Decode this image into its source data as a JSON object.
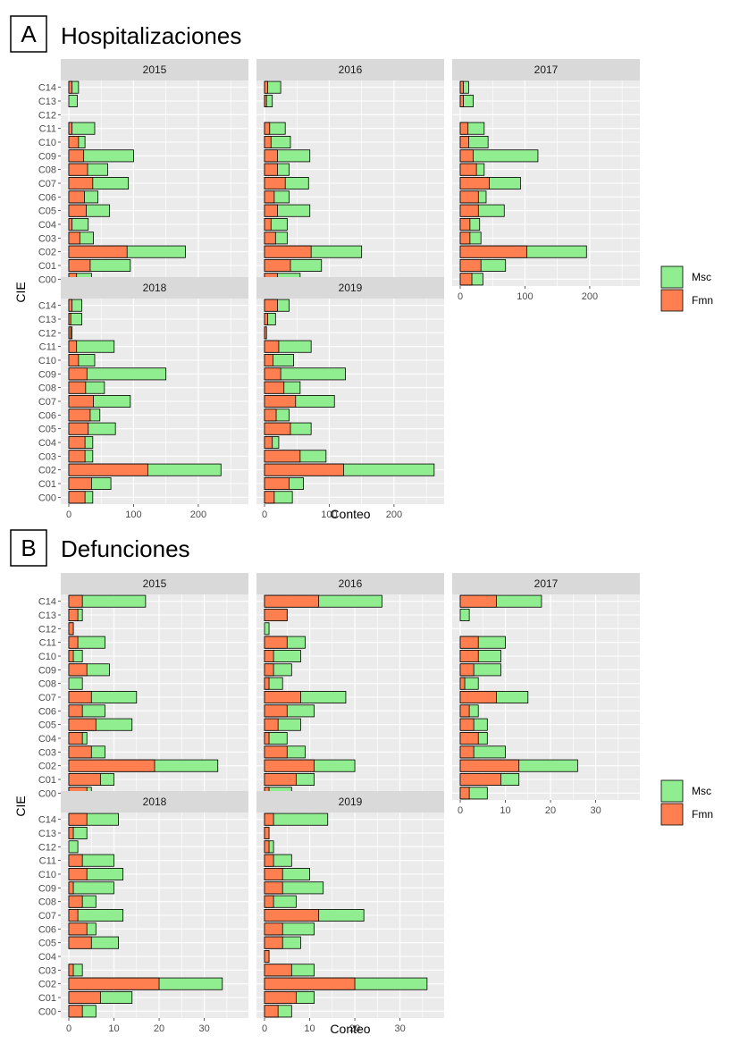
{
  "colors": {
    "msc": "#90EE90",
    "fmn": "#FF7F50",
    "panel_bg": "#EBEBEB",
    "strip_bg": "#D9D9D9",
    "grid": "#FFFFFF"
  },
  "chart_data": [
    {
      "letter": "A",
      "title": "Hospitalizaciones",
      "type": "bar",
      "orientation": "horizontal",
      "stacked": true,
      "xlabel": "Conteo",
      "ylabel": "CIE",
      "categories": [
        "C00",
        "C01",
        "C02",
        "C03",
        "C04",
        "C05",
        "C06",
        "C07",
        "C08",
        "C09",
        "C10",
        "C11",
        "C12",
        "C13",
        "C14"
      ],
      "xlim": [
        0,
        265
      ],
      "xticks": [
        0,
        100,
        200
      ],
      "legend": [
        {
          "key": "msc",
          "label": "Msc"
        },
        {
          "key": "fmn",
          "label": "Fmn"
        }
      ],
      "legend_position": "right",
      "facets": [
        {
          "label": "2015",
          "fmn": [
            12,
            33,
            90,
            17,
            5,
            27,
            24,
            37,
            29,
            23,
            15,
            5,
            0,
            0,
            5
          ],
          "total": [
            35,
            95,
            180,
            38,
            30,
            63,
            45,
            92,
            60,
            100,
            25,
            40,
            0,
            13,
            15
          ]
        },
        {
          "label": "2016",
          "fmn": [
            20,
            40,
            72,
            17,
            10,
            20,
            15,
            32,
            20,
            20,
            10,
            8,
            0,
            3,
            5
          ],
          "total": [
            55,
            88,
            150,
            35,
            35,
            70,
            38,
            68,
            38,
            70,
            40,
            32,
            0,
            12,
            25
          ]
        },
        {
          "label": "2017",
          "fmn": [
            18,
            32,
            103,
            15,
            15,
            28,
            28,
            45,
            25,
            20,
            13,
            12,
            0,
            5,
            5
          ],
          "total": [
            35,
            70,
            195,
            32,
            30,
            68,
            40,
            93,
            37,
            120,
            43,
            37,
            0,
            20,
            13
          ]
        },
        {
          "label": "2018",
          "fmn": [
            25,
            35,
            122,
            25,
            25,
            30,
            33,
            38,
            26,
            28,
            15,
            12,
            3,
            3,
            5
          ],
          "total": [
            37,
            65,
            235,
            37,
            37,
            72,
            48,
            95,
            55,
            150,
            40,
            70,
            5,
            20,
            20
          ]
        },
        {
          "label": "2019",
          "fmn": [
            15,
            38,
            122,
            55,
            12,
            40,
            18,
            48,
            30,
            25,
            13,
            22,
            3,
            5,
            20
          ],
          "total": [
            43,
            60,
            262,
            95,
            22,
            72,
            38,
            108,
            55,
            125,
            45,
            72,
            3,
            17,
            38
          ]
        }
      ]
    },
    {
      "letter": "B",
      "title": "Defunciones",
      "type": "bar",
      "orientation": "horizontal",
      "stacked": true,
      "xlabel": "Conteo",
      "ylabel": "CIE",
      "categories": [
        "C00",
        "C01",
        "C02",
        "C03",
        "C04",
        "C05",
        "C06",
        "C07",
        "C08",
        "C09",
        "C10",
        "C11",
        "C12",
        "C13",
        "C14"
      ],
      "xlim": [
        0,
        38
      ],
      "xticks": [
        0,
        10,
        20,
        30
      ],
      "legend": [
        {
          "key": "msc",
          "label": "Msc"
        },
        {
          "key": "fmn",
          "label": "Fmn"
        }
      ],
      "legend_position": "right",
      "facets": [
        {
          "label": "2015",
          "fmn": [
            4,
            7,
            19,
            5,
            3,
            6,
            3,
            5,
            0,
            4,
            1,
            2,
            1,
            2,
            3
          ],
          "total": [
            5,
            10,
            33,
            8,
            4,
            14,
            8,
            15,
            3,
            9,
            3,
            8,
            1,
            3,
            17
          ]
        },
        {
          "label": "2016",
          "fmn": [
            1,
            7,
            11,
            5,
            1,
            3,
            5,
            8,
            1,
            2,
            2,
            5,
            0,
            5,
            12
          ],
          "total": [
            6,
            11,
            20,
            9,
            5,
            8,
            11,
            18,
            4,
            6,
            8,
            9,
            1,
            5,
            26
          ]
        },
        {
          "label": "2017",
          "fmn": [
            2,
            9,
            13,
            3,
            4,
            3,
            2,
            8,
            1,
            3,
            4,
            4,
            0,
            0,
            8
          ],
          "total": [
            6,
            13,
            26,
            10,
            6,
            6,
            4,
            15,
            4,
            9,
            9,
            10,
            0,
            2,
            18
          ]
        },
        {
          "label": "2018",
          "fmn": [
            3,
            7,
            20,
            1,
            0,
            5,
            4,
            2,
            3,
            1,
            4,
            3,
            0,
            1,
            4
          ],
          "total": [
            6,
            14,
            34,
            3,
            0,
            11,
            6,
            12,
            6,
            10,
            12,
            10,
            2,
            4,
            11
          ]
        },
        {
          "label": "2019",
          "fmn": [
            3,
            7,
            20,
            6,
            1,
            4,
            4,
            12,
            2,
            4,
            4,
            2,
            1,
            1,
            2
          ],
          "total": [
            6,
            11,
            36,
            11,
            1,
            8,
            11,
            22,
            7,
            13,
            10,
            6,
            2,
            1,
            14
          ]
        }
      ]
    }
  ]
}
